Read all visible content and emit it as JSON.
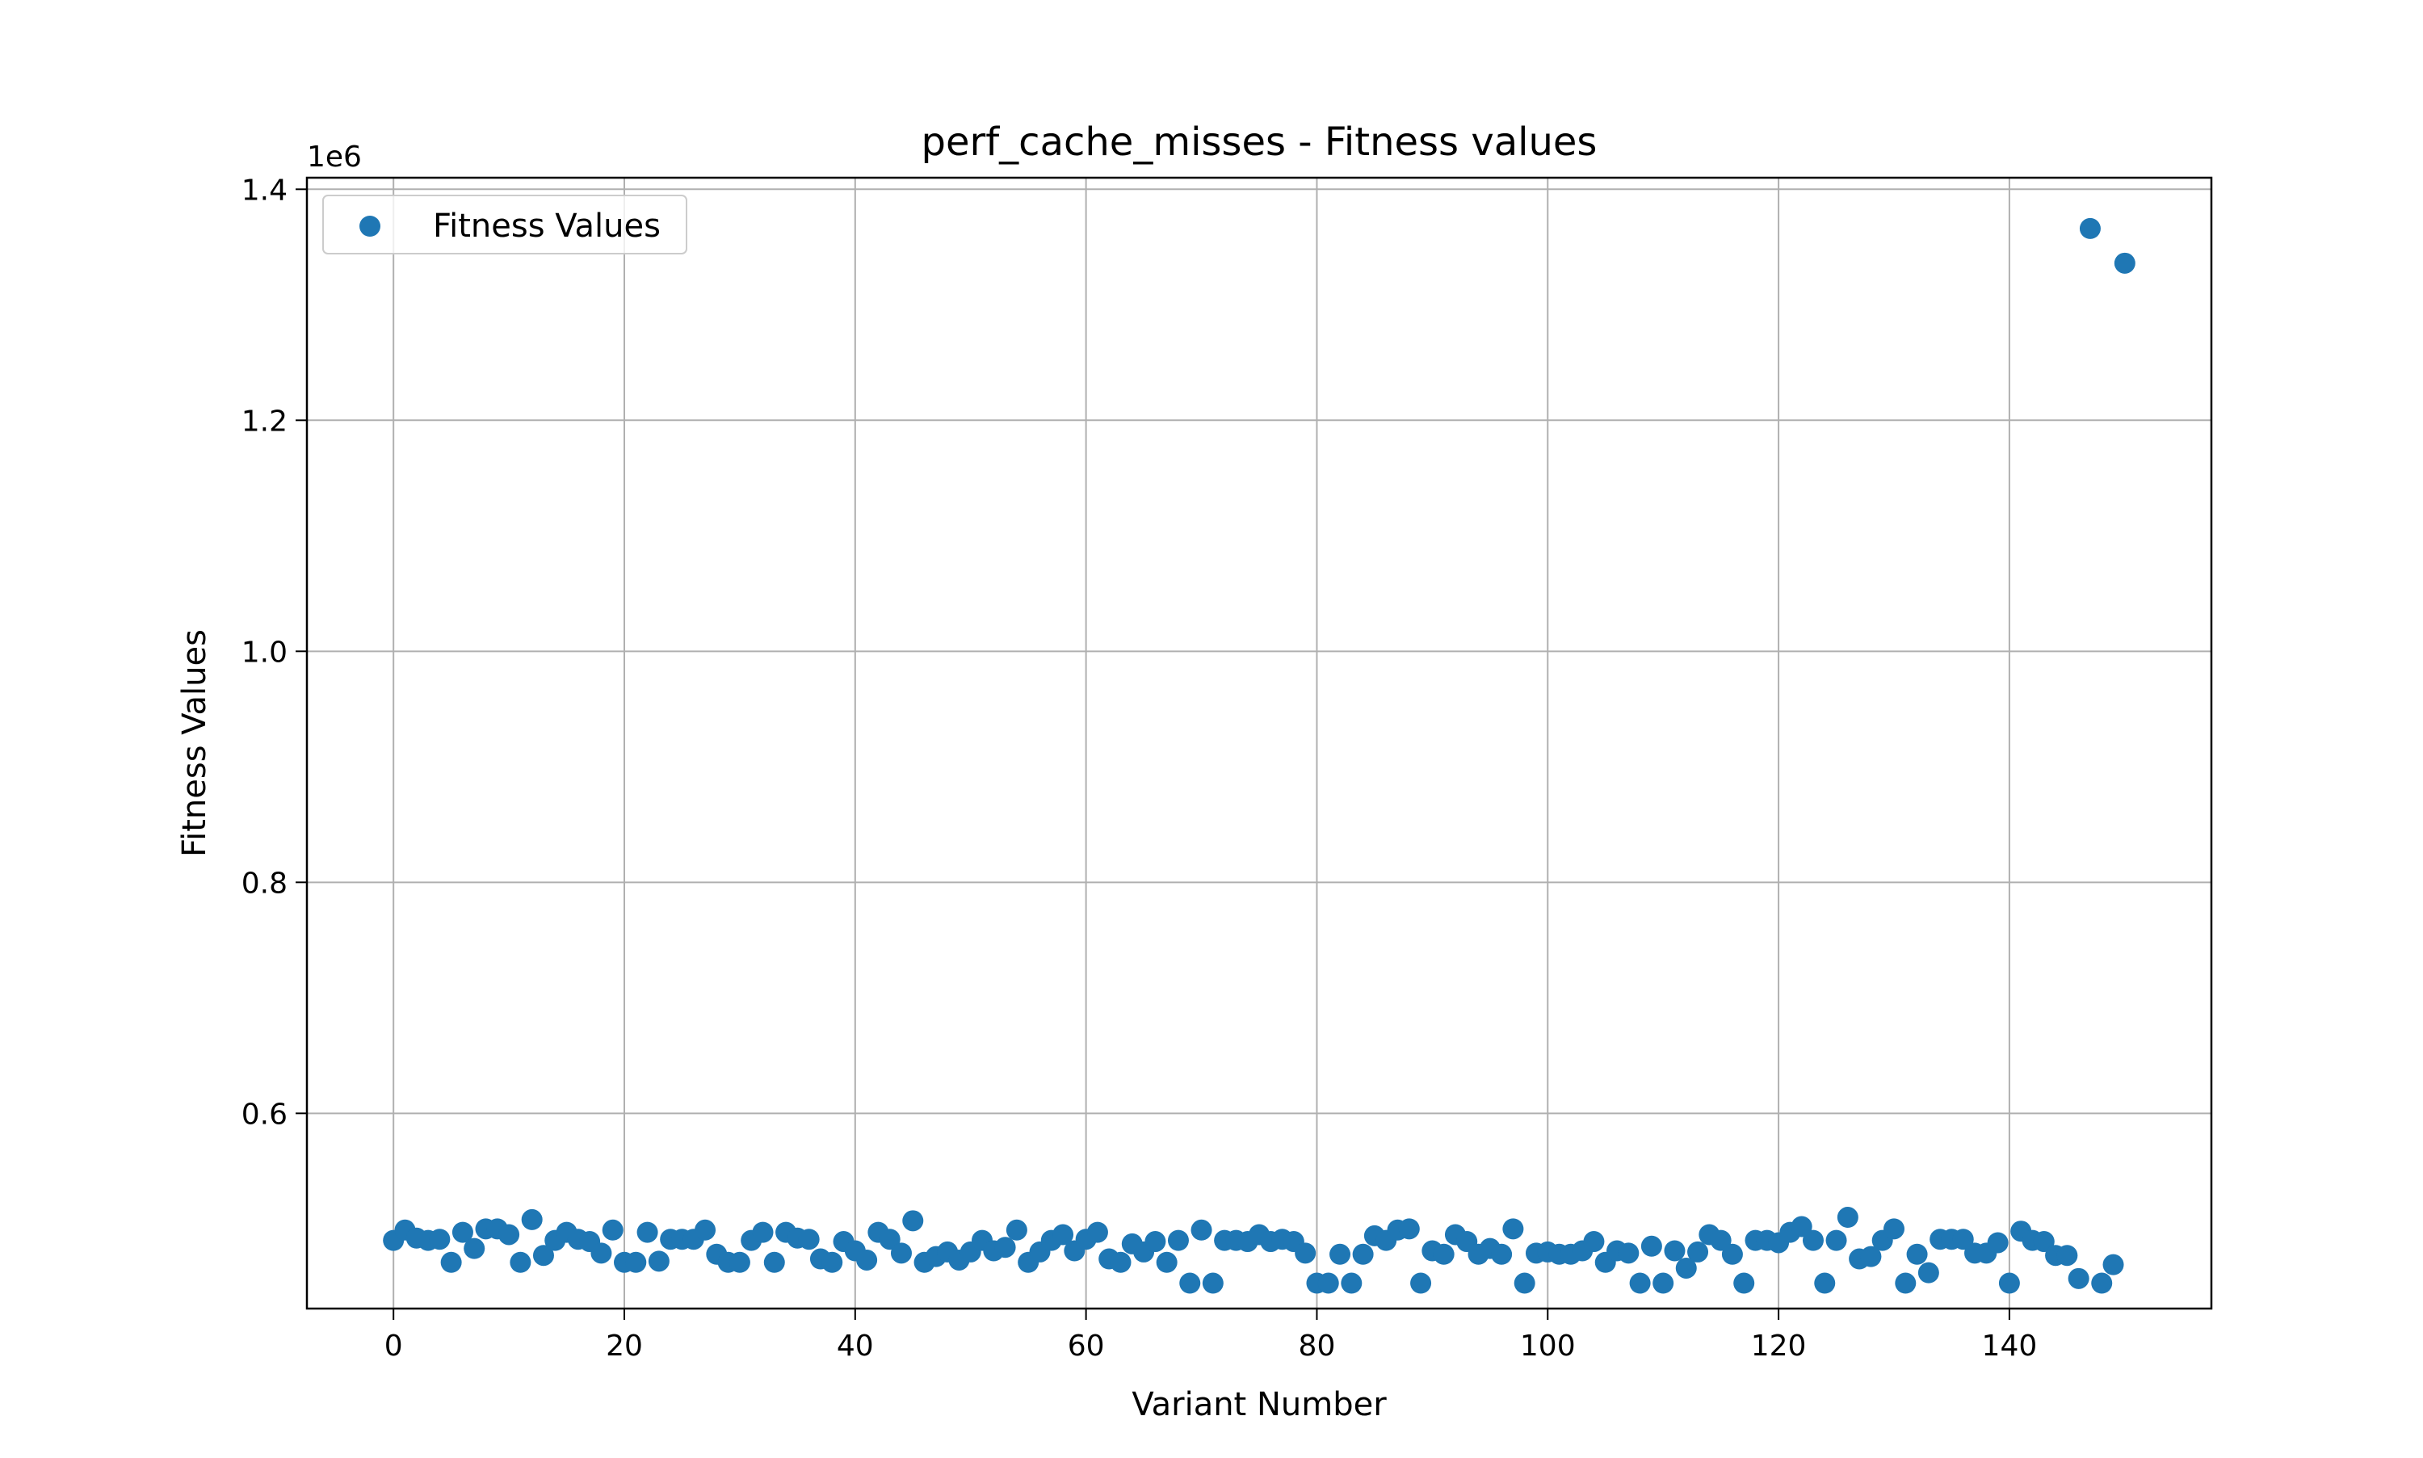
{
  "chart_data": {
    "type": "scatter",
    "title": "perf_cache_misses - Fitness values",
    "xlabel": "Variant Number",
    "ylabel": "Fitness Values",
    "y_offset_label": "1e6",
    "xlim": [
      -7.5,
      157.5
    ],
    "ylim": [
      0.431,
      1.41
    ],
    "grid": true,
    "legend_position": "upper-left",
    "x_ticks": [
      0,
      20,
      40,
      60,
      80,
      100,
      120,
      140
    ],
    "x_tick_labels": [
      "0",
      "20",
      "40",
      "60",
      "80",
      "100",
      "120",
      "140"
    ],
    "y_ticks": [
      0.6,
      0.8,
      1.0,
      1.2,
      1.4
    ],
    "y_tick_labels": [
      "0.6",
      "0.8",
      "1.0",
      "1.2",
      "1.4"
    ],
    "series": [
      {
        "name": "Fitness Values",
        "color": "#1f77b4",
        "x": [
          0,
          1,
          2,
          3,
          4,
          5,
          6,
          7,
          8,
          9,
          10,
          11,
          12,
          13,
          14,
          15,
          16,
          17,
          18,
          19,
          20,
          21,
          22,
          23,
          24,
          25,
          26,
          27,
          28,
          29,
          30,
          31,
          32,
          33,
          34,
          35,
          36,
          37,
          38,
          39,
          40,
          41,
          42,
          43,
          44,
          45,
          46,
          47,
          48,
          49,
          50,
          51,
          52,
          53,
          54,
          55,
          56,
          57,
          58,
          59,
          60,
          61,
          62,
          63,
          64,
          65,
          66,
          67,
          68,
          69,
          70,
          71,
          72,
          73,
          74,
          75,
          76,
          77,
          78,
          79,
          80,
          81,
          82,
          83,
          84,
          85,
          86,
          87,
          88,
          89,
          90,
          91,
          92,
          93,
          94,
          95,
          96,
          97,
          98,
          99,
          100,
          101,
          102,
          103,
          104,
          105,
          106,
          107,
          108,
          109,
          110,
          111,
          112,
          113,
          114,
          115,
          116,
          117,
          118,
          119,
          120,
          121,
          122,
          123,
          124,
          125,
          126,
          127,
          128,
          129,
          130,
          131,
          132,
          133,
          134,
          135,
          136,
          137,
          138,
          139,
          140,
          141,
          142,
          143,
          144,
          145,
          146,
          147,
          148,
          149,
          150
        ],
        "y": [
          0.49,
          0.499,
          0.492,
          0.49,
          0.491,
          0.471,
          0.497,
          0.483,
          0.5,
          0.5,
          0.495,
          0.471,
          0.508,
          0.477,
          0.49,
          0.497,
          0.491,
          0.489,
          0.479,
          0.499,
          0.471,
          0.471,
          0.497,
          0.472,
          0.491,
          0.491,
          0.491,
          0.499,
          0.478,
          0.471,
          0.471,
          0.49,
          0.497,
          0.471,
          0.497,
          0.492,
          0.491,
          0.474,
          0.471,
          0.489,
          0.481,
          0.473,
          0.497,
          0.491,
          0.479,
          0.507,
          0.471,
          0.476,
          0.48,
          0.473,
          0.48,
          0.49,
          0.481,
          0.484,
          0.499,
          0.471,
          0.48,
          0.49,
          0.495,
          0.481,
          0.491,
          0.497,
          0.474,
          0.471,
          0.487,
          0.48,
          0.489,
          0.471,
          0.49,
          0.453,
          0.499,
          0.453,
          0.49,
          0.49,
          0.489,
          0.495,
          0.489,
          0.491,
          0.489,
          0.479,
          0.453,
          0.453,
          0.478,
          0.453,
          0.478,
          0.494,
          0.49,
          0.499,
          0.5,
          0.453,
          0.481,
          0.478,
          0.495,
          0.489,
          0.478,
          0.483,
          0.478,
          0.5,
          0.453,
          0.479,
          0.48,
          0.478,
          0.478,
          0.481,
          0.489,
          0.471,
          0.481,
          0.479,
          0.453,
          0.485,
          0.453,
          0.481,
          0.466,
          0.48,
          0.495,
          0.49,
          0.478,
          0.453,
          0.49,
          0.49,
          0.488,
          0.497,
          0.502,
          0.49,
          0.453,
          0.49,
          0.51,
          0.474,
          0.476,
          0.49,
          0.5,
          0.453,
          0.478,
          0.462,
          0.491,
          0.491,
          0.491,
          0.479,
          0.479,
          0.488,
          0.453,
          0.498,
          0.49,
          0.489,
          0.477,
          0.477,
          0.457,
          1.366,
          0.453,
          0.469,
          1.336
        ]
      }
    ]
  }
}
